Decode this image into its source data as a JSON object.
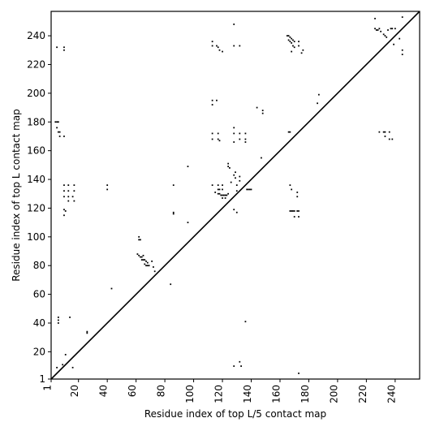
{
  "chart_data": {
    "type": "heatmap",
    "title": "",
    "xlabel": "Residue index of top L/5 contact map",
    "ylabel": "Residue index of top L contact map",
    "xlim": [
      1,
      257
    ],
    "ylim": [
      1,
      257
    ],
    "xticks": [
      1,
      20,
      40,
      60,
      80,
      100,
      120,
      140,
      160,
      180,
      200,
      220,
      240
    ],
    "yticks": [
      1,
      20,
      40,
      60,
      80,
      100,
      120,
      140,
      160,
      180,
      200,
      220,
      240
    ],
    "xtick_labels": [
      "1",
      "20",
      "40",
      "60",
      "80",
      "100",
      "120",
      "140",
      "160",
      "180",
      "200",
      "220",
      "240"
    ],
    "ytick_labels": [
      "1",
      "20",
      "40",
      "60",
      "80",
      "100",
      "120",
      "140",
      "160",
      "180",
      "200",
      "220",
      "240"
    ],
    "xtick_rotation_deg": 270,
    "grid": false,
    "diagonal": [
      [
        1,
        1
      ],
      [
        257,
        257
      ]
    ],
    "mark_color": "#000000",
    "upper_triangle_contacts": [
      [
        4,
        180
      ],
      [
        5,
        180
      ],
      [
        6,
        180
      ],
      [
        5,
        176
      ],
      [
        6,
        173
      ],
      [
        7,
        173
      ],
      [
        7,
        170
      ],
      [
        10,
        170
      ],
      [
        5,
        232
      ],
      [
        10,
        232
      ],
      [
        10,
        230
      ],
      [
        10,
        136
      ],
      [
        13,
        136
      ],
      [
        17,
        136
      ],
      [
        10,
        132
      ],
      [
        13,
        132
      ],
      [
        17,
        132
      ],
      [
        10,
        128
      ],
      [
        13,
        128
      ],
      [
        16,
        128
      ],
      [
        13,
        125
      ],
      [
        17,
        125
      ],
      [
        10,
        119
      ],
      [
        11,
        118
      ],
      [
        10,
        115
      ],
      [
        40,
        136
      ],
      [
        40,
        133
      ],
      [
        86,
        136
      ],
      [
        86,
        117
      ],
      [
        86,
        116
      ],
      [
        96,
        149
      ],
      [
        96,
        110
      ],
      [
        113,
        195
      ],
      [
        113,
        192
      ],
      [
        116,
        195
      ],
      [
        113,
        236
      ],
      [
        113,
        233
      ],
      [
        116,
        233
      ],
      [
        117,
        232
      ],
      [
        118,
        230
      ],
      [
        120,
        229
      ],
      [
        113,
        172
      ],
      [
        113,
        168
      ],
      [
        117,
        172
      ],
      [
        117,
        168
      ],
      [
        118,
        167
      ],
      [
        113,
        136
      ],
      [
        117,
        136
      ],
      [
        117,
        133
      ],
      [
        118,
        133
      ],
      [
        120,
        133
      ],
      [
        120,
        136
      ],
      [
        115,
        131
      ],
      [
        117,
        130
      ],
      [
        118,
        130
      ],
      [
        119,
        129
      ],
      [
        120,
        129
      ],
      [
        121,
        129
      ],
      [
        122,
        129
      ],
      [
        123,
        129
      ],
      [
        124,
        130
      ],
      [
        120,
        127
      ],
      [
        122,
        127
      ],
      [
        124,
        151
      ],
      [
        124,
        149
      ],
      [
        125,
        148
      ],
      [
        128,
        248
      ],
      [
        128,
        233
      ],
      [
        132,
        233
      ],
      [
        128,
        176
      ],
      [
        128,
        172
      ],
      [
        128,
        166
      ],
      [
        132,
        172
      ],
      [
        132,
        168
      ],
      [
        136,
        172
      ],
      [
        136,
        168
      ],
      [
        136,
        166
      ],
      [
        129,
        145
      ],
      [
        129,
        141
      ],
      [
        132,
        142
      ],
      [
        132,
        139
      ],
      [
        128,
        143
      ],
      [
        126,
        138
      ],
      [
        130,
        136
      ],
      [
        130,
        132
      ],
      [
        137,
        133
      ],
      [
        138,
        133
      ],
      [
        139,
        133
      ],
      [
        140,
        133
      ],
      [
        128,
        119
      ],
      [
        130,
        117
      ],
      [
        144,
        190
      ],
      [
        148,
        188
      ],
      [
        148,
        186
      ],
      [
        147,
        155
      ],
      [
        165,
        240
      ],
      [
        166,
        240
      ],
      [
        167,
        239
      ],
      [
        168,
        238
      ],
      [
        169,
        237
      ],
      [
        170,
        236
      ],
      [
        166,
        237
      ],
      [
        167,
        236
      ],
      [
        168,
        235
      ],
      [
        169,
        233
      ],
      [
        170,
        232
      ],
      [
        168,
        229
      ],
      [
        173,
        236
      ],
      [
        173,
        233
      ],
      [
        176,
        230
      ],
      [
        175,
        228
      ],
      [
        166,
        173
      ],
      [
        167,
        173
      ],
      [
        167,
        136
      ],
      [
        168,
        133
      ],
      [
        172,
        131
      ],
      [
        172,
        128
      ],
      [
        167,
        118
      ],
      [
        168,
        118
      ],
      [
        169,
        118
      ],
      [
        170,
        118
      ],
      [
        172,
        118
      ],
      [
        173,
        118
      ],
      [
        170,
        114
      ],
      [
        173,
        114
      ],
      [
        186,
        193
      ],
      [
        187,
        199
      ],
      [
        226,
        252
      ],
      [
        226,
        245
      ],
      [
        227,
        244
      ],
      [
        228,
        244
      ],
      [
        229,
        245
      ],
      [
        230,
        243
      ],
      [
        232,
        241
      ],
      [
        233,
        240
      ],
      [
        234,
        239
      ],
      [
        235,
        244
      ],
      [
        237,
        245
      ],
      [
        238,
        245
      ],
      [
        240,
        245
      ],
      [
        243,
        238
      ],
      [
        245,
        253
      ],
      [
        245,
        230
      ],
      [
        245,
        227
      ],
      [
        239,
        234
      ],
      [
        229,
        173
      ],
      [
        232,
        173
      ],
      [
        233,
        173
      ],
      [
        236,
        173
      ],
      [
        233,
        170
      ],
      [
        236,
        168
      ],
      [
        238,
        168
      ]
    ],
    "lower_triangle_contacts": [
      [
        5,
        9
      ],
      [
        9,
        11
      ],
      [
        11,
        18
      ],
      [
        6,
        44
      ],
      [
        6,
        42
      ],
      [
        6,
        40
      ],
      [
        14,
        44
      ],
      [
        16,
        9
      ],
      [
        26,
        34
      ],
      [
        26,
        33
      ],
      [
        43,
        64
      ],
      [
        62,
        100
      ],
      [
        62,
        98
      ],
      [
        63,
        98
      ],
      [
        61,
        88
      ],
      [
        62,
        87
      ],
      [
        63,
        86
      ],
      [
        64,
        86
      ],
      [
        65,
        87
      ],
      [
        64,
        84
      ],
      [
        65,
        84
      ],
      [
        66,
        84
      ],
      [
        67,
        83
      ],
      [
        68,
        82
      ],
      [
        66,
        81
      ],
      [
        67,
        80
      ],
      [
        68,
        80
      ],
      [
        69,
        80
      ],
      [
        71,
        83
      ],
      [
        72,
        79
      ],
      [
        73,
        76
      ],
      [
        84,
        67
      ],
      [
        128,
        10
      ],
      [
        132,
        13
      ],
      [
        133,
        10
      ],
      [
        136,
        41
      ],
      [
        173,
        5
      ]
    ]
  }
}
